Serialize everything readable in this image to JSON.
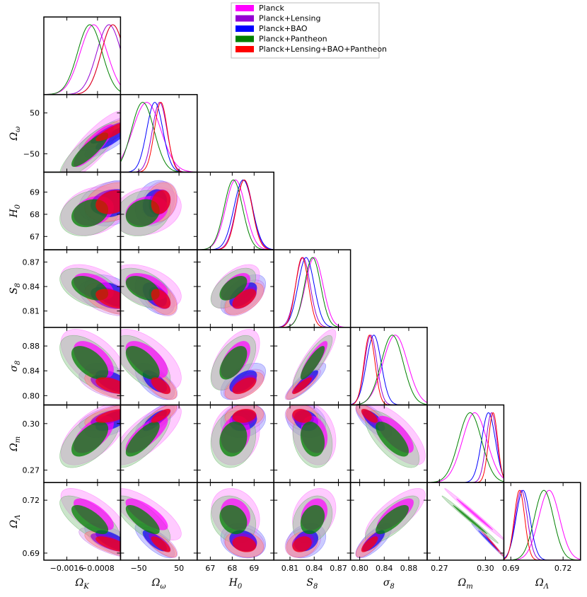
{
  "chart_data": {
    "type": "corner",
    "parameters": [
      {
        "key": "Ok",
        "label": "ΩK",
        "sub": "K",
        "base": "Ω",
        "range": [
          -0.0022,
          -0.0002
        ],
        "ticks": [
          -0.0016,
          -0.0008
        ],
        "tick_labels": [
          "−0.0016",
          "−0.0008"
        ]
      },
      {
        "key": "Ow",
        "label": "Ωω",
        "sub": "ω",
        "base": "Ω",
        "range": [
          -95,
          95
        ],
        "ticks": [
          -50,
          50
        ],
        "tick_labels": [
          "−50",
          "50"
        ]
      },
      {
        "key": "H0",
        "label": "H0",
        "sub": "0",
        "base": "H",
        "range": [
          66.4,
          69.9
        ],
        "ticks": [
          67,
          68,
          69
        ],
        "tick_labels": [
          "67",
          "68",
          "69"
        ]
      },
      {
        "key": "S8",
        "label": "S8",
        "sub": "8",
        "base": "S",
        "range": [
          0.79,
          0.885
        ],
        "ticks": [
          0.81,
          0.84,
          0.87
        ],
        "tick_labels": [
          "0.81",
          "0.84",
          "0.87"
        ]
      },
      {
        "key": "s8",
        "label": "σ8",
        "sub": "8",
        "base": "σ",
        "range": [
          0.785,
          0.91
        ],
        "ticks": [
          0.8,
          0.84,
          0.88
        ],
        "tick_labels": [
          "0.80",
          "0.84",
          "0.88"
        ]
      },
      {
        "key": "Om",
        "label": "Ωm",
        "sub": "m",
        "base": "Ω",
        "range": [
          0.262,
          0.312
        ],
        "ticks": [
          0.27,
          0.3
        ],
        "tick_labels": [
          "0.27",
          "0.30"
        ]
      },
      {
        "key": "OL",
        "label": "ΩΛ",
        "sub": "Λ",
        "base": "Ω",
        "range": [
          0.686,
          0.73
        ],
        "ticks": [
          0.69,
          0.72
        ],
        "tick_labels": [
          "0.69",
          "0.72"
        ]
      }
    ],
    "series": [
      {
        "name": "Planck",
        "color": "#ff00ff",
        "mean": {
          "Ok": -0.0009,
          "Ow": -30,
          "H0": 68.15,
          "S8": 0.84,
          "s8": 0.858,
          "Om": 0.293,
          "OL": 0.712
        },
        "sd": {
          "Ok": 0.00035,
          "Ow": 35,
          "H0": 0.45,
          "S8": 0.011,
          "s8": 0.02,
          "Om": 0.008,
          "OL": 0.006
        }
      },
      {
        "name": "Planck+Lensing",
        "color": "#9400d3",
        "mean": {
          "Ok": -0.0005,
          "Ow": 2,
          "H0": 68.55,
          "S8": 0.826,
          "s8": 0.818,
          "Om": 0.304,
          "OL": 0.696
        },
        "sd": {
          "Ok": 0.00032,
          "Ow": 18,
          "H0": 0.38,
          "S8": 0.009,
          "s8": 0.01,
          "Om": 0.0035,
          "OL": 0.0035
        }
      },
      {
        "name": "Planck+BAO",
        "color": "#0000ff",
        "mean": {
          "Ok": -0.0004,
          "Ow": -10,
          "H0": 68.5,
          "S8": 0.83,
          "s8": 0.823,
          "Om": 0.302,
          "OL": 0.697
        },
        "sd": {
          "Ok": 0.0003,
          "Ow": 20,
          "H0": 0.42,
          "S8": 0.01,
          "s8": 0.012,
          "Om": 0.0045,
          "OL": 0.004
        }
      },
      {
        "name": "Planck+Pantheon",
        "color": "#008000",
        "mean": {
          "Ok": -0.001,
          "Ow": -40,
          "H0": 68.05,
          "S8": 0.838,
          "s8": 0.853,
          "Om": 0.29,
          "OL": 0.709
        },
        "sd": {
          "Ok": 0.00032,
          "Ow": 28,
          "H0": 0.42,
          "S8": 0.01,
          "s8": 0.018,
          "Om": 0.0075,
          "OL": 0.0055
        }
      },
      {
        "name": "Planck+Lensing+BAO+Pantheon",
        "color": "#ff0000",
        "mean": {
          "Ok": -0.0004,
          "Ow": 5,
          "H0": 68.55,
          "S8": 0.825,
          "s8": 0.816,
          "Om": 0.305,
          "OL": 0.695
        },
        "sd": {
          "Ok": 0.0003,
          "Ow": 16,
          "H0": 0.36,
          "S8": 0.008,
          "s8": 0.009,
          "Om": 0.003,
          "OL": 0.003
        }
      }
    ],
    "legend": {
      "placement": "top-center"
    }
  }
}
